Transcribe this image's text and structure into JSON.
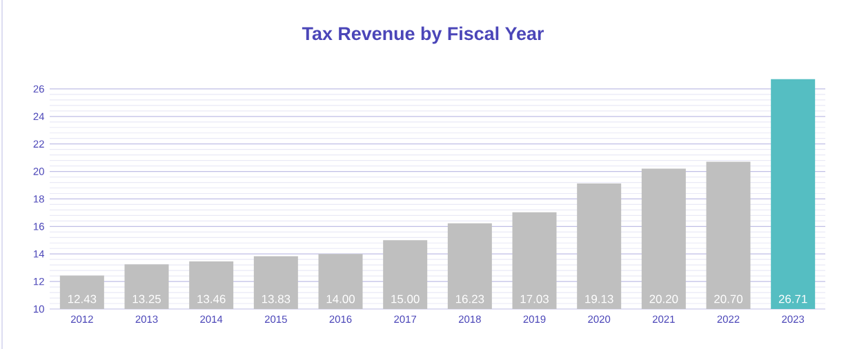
{
  "chart_data": {
    "type": "bar",
    "title": "Tax Revenue by Fiscal Year",
    "categories": [
      "2012",
      "2013",
      "2014",
      "2015",
      "2016",
      "2017",
      "2018",
      "2019",
      "2020",
      "2021",
      "2022",
      "2023"
    ],
    "values": [
      12.43,
      13.25,
      13.46,
      13.83,
      14.0,
      15.0,
      16.23,
      17.03,
      19.13,
      20.2,
      20.7,
      26.71
    ],
    "colors": [
      "#bfbfbf",
      "#bfbfbf",
      "#bfbfbf",
      "#bfbfbf",
      "#bfbfbf",
      "#bfbfbf",
      "#bfbfbf",
      "#bfbfbf",
      "#bfbfbf",
      "#bfbfbf",
      "#bfbfbf",
      "#55bec2"
    ],
    "value_labels": [
      "12.43",
      "13.25",
      "13.46",
      "13.83",
      "14.00",
      "15.00",
      "16.23",
      "17.03",
      "19.13",
      "20.20",
      "20.70",
      "26.71"
    ],
    "ylim": [
      10,
      26.8
    ],
    "yticks": [
      10,
      12,
      14,
      16,
      18,
      20,
      22,
      24,
      26
    ],
    "grid": "y"
  }
}
